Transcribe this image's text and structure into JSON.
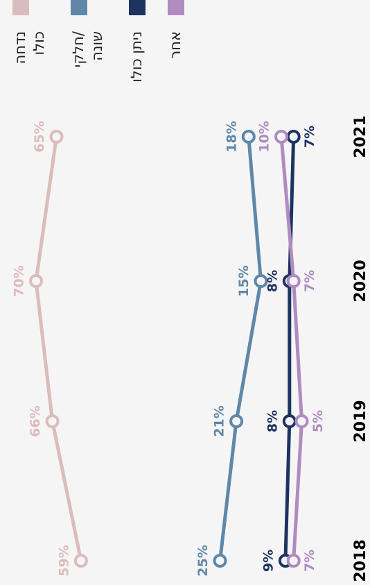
{
  "chart_data": {
    "type": "line",
    "categories": [
      "2018",
      "2019",
      "2020",
      "2021"
    ],
    "series": [
      {
        "name": "נדחה\nכולו",
        "color": "#dbbcbd",
        "values": [
          59,
          66,
          70,
          65
        ],
        "value_labels": [
          "59%",
          "66%",
          "70%",
          "65%"
        ]
      },
      {
        "name": "חלקי/\nשונה",
        "color": "#5f87a8",
        "values": [
          25,
          21,
          15,
          18
        ],
        "value_labels": [
          "25%",
          "21%",
          "15%",
          "18%"
        ]
      },
      {
        "name": "ניתן כולו",
        "color": "#1d3461",
        "values": [
          9,
          8,
          8,
          7
        ],
        "value_labels": [
          "9%",
          "8%",
          "8%",
          "7%"
        ]
      },
      {
        "name": "אחר",
        "color": "#b08bbf",
        "values": [
          7,
          5,
          7,
          10
        ],
        "value_labels": [
          "7%",
          "5%",
          "7%",
          "10%"
        ]
      }
    ],
    "legend": "top"
  }
}
